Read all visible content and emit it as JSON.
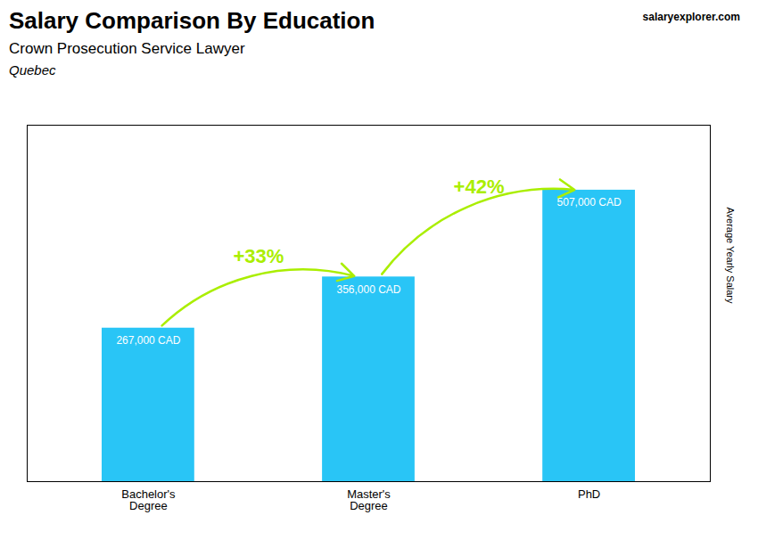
{
  "chart_data": {
    "type": "bar",
    "title": "Salary Comparison By Education",
    "subtitle": "Crown Prosecution Service Lawyer",
    "location": "Quebec",
    "watermark": "salaryexplorer.com",
    "ylabel": "Average Yearly Salary",
    "categories": [
      "Bachelor's\nDegree",
      "Master's\nDegree",
      "PhD"
    ],
    "values": [
      267000,
      356000,
      507000
    ],
    "value_labels": [
      "267,000 CAD",
      "356,000 CAD",
      "507,000 CAD"
    ],
    "data_labels": true,
    "color": "#29c5f6",
    "ylim": [
      0,
      620000
    ],
    "tick_labels": "x",
    "annotations": [
      {
        "text": "+33%",
        "color": "#aaee00"
      },
      {
        "text": "+42%",
        "color": "#aaee00"
      }
    ]
  }
}
